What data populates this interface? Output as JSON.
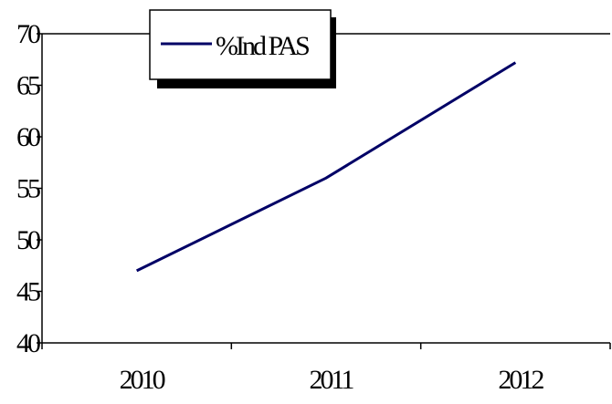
{
  "chart_data": {
    "type": "line",
    "categories": [
      "2010",
      "2011",
      "2012"
    ],
    "series": [
      {
        "name": "%Ind PAS",
        "values": [
          47,
          56,
          67.2
        ],
        "color": "#000066"
      }
    ],
    "ylim": [
      40,
      70
    ],
    "yticks": [
      "40",
      "45",
      "50",
      "55",
      "60",
      "65",
      "70"
    ],
    "title": "",
    "xlabel": "",
    "ylabel": "",
    "grid": false,
    "legend_placement": "top-center"
  }
}
